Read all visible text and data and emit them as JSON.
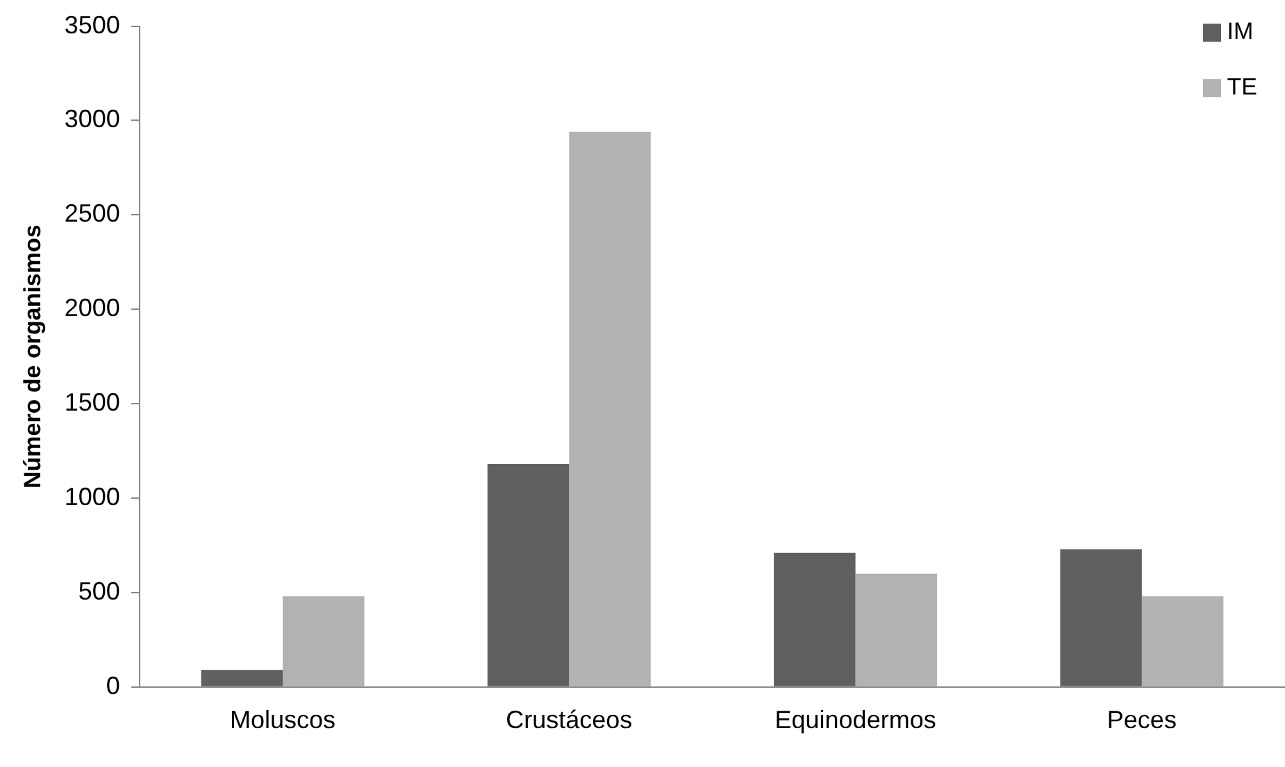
{
  "chart_data": {
    "type": "bar",
    "ylabel": "Número de organismos",
    "categories": [
      "Moluscos",
      "Crustáceos",
      "Equinodermos",
      "Peces"
    ],
    "series": [
      {
        "name": "IM",
        "color": "#606060",
        "values": [
          90,
          1180,
          710,
          730
        ]
      },
      {
        "name": "TE",
        "color": "#b2b2b2",
        "values": [
          480,
          2940,
          600,
          480
        ]
      }
    ],
    "ylim": [
      0,
      3500
    ],
    "yticks": [
      0,
      500,
      1000,
      1500,
      2000,
      2500,
      3000,
      3500
    ],
    "grid": false,
    "legend": "top right"
  }
}
